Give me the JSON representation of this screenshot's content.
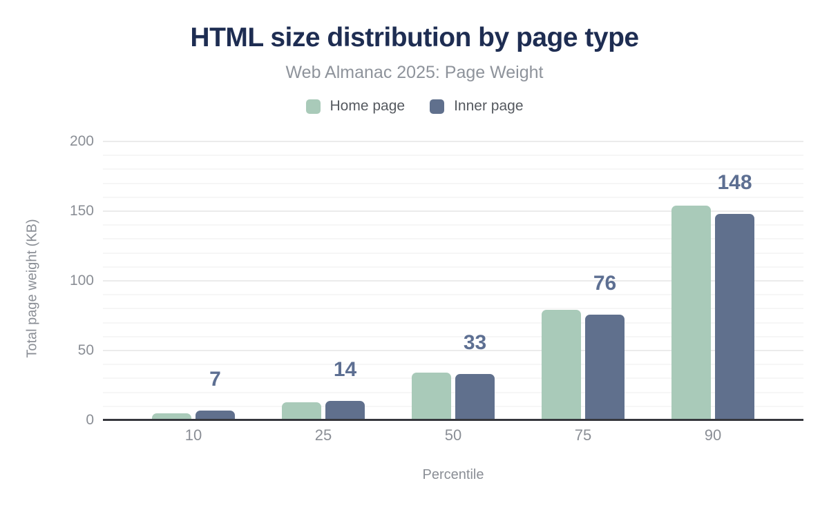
{
  "header": {
    "title": "HTML size distribution by page type",
    "subtitle": "Web Almanac 2025: Page Weight"
  },
  "legend": {
    "items": [
      {
        "label": "Home page",
        "color": "#a9cab9"
      },
      {
        "label": "Inner page",
        "color": "#60708d"
      }
    ]
  },
  "chart_data": {
    "type": "bar",
    "title": "HTML size distribution by page type",
    "subtitle": "Web Almanac 2025: Page Weight",
    "categories": [
      "10",
      "25",
      "50",
      "75",
      "90"
    ],
    "series": [
      {
        "name": "Home page",
        "color": "#a9cab9",
        "values": [
          5,
          13,
          34,
          79,
          154
        ]
      },
      {
        "name": "Inner page",
        "color": "#60708d",
        "values": [
          7,
          14,
          33,
          76,
          148
        ],
        "data_labels": [
          "7",
          "14",
          "33",
          "76",
          "148"
        ]
      }
    ],
    "xlabel": "Percentile",
    "ylabel": "Total page weight (KB)",
    "ylim": [
      0,
      200
    ],
    "yticks": [
      0,
      50,
      100,
      150,
      200
    ],
    "minor_grid_step": 10,
    "grid": true,
    "legend_position": "top",
    "data_label_color": "#5d6f92",
    "axis_line_color": "#36373d"
  }
}
